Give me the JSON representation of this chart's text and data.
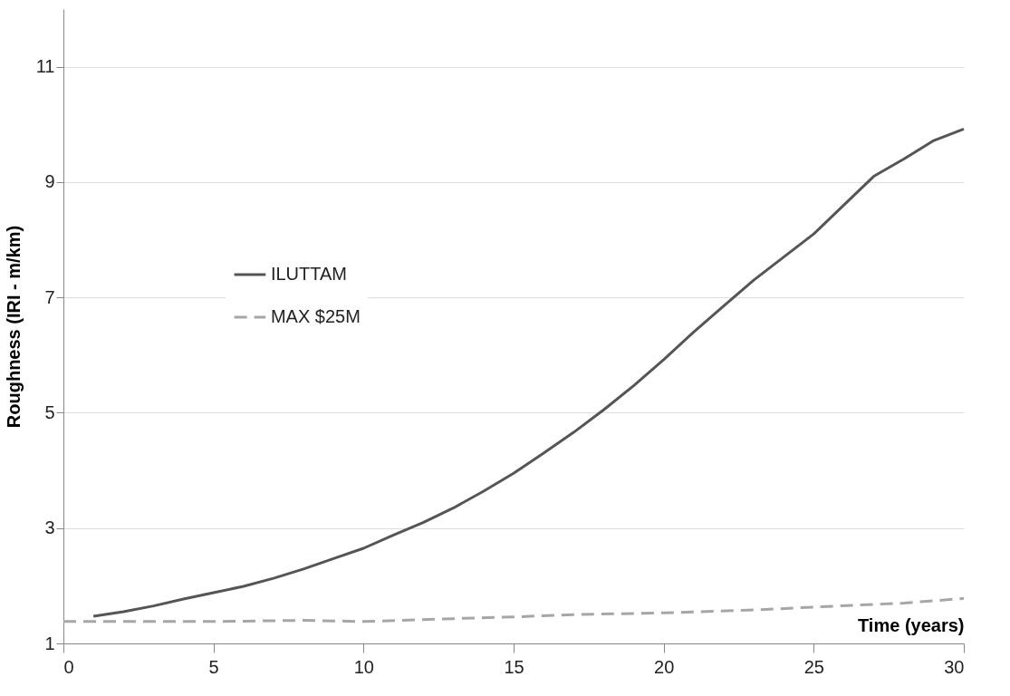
{
  "chart_data": {
    "type": "line",
    "xlabel": "Time (years)",
    "ylabel": "Roughness (IRI - m/km)",
    "xlim": [
      0,
      30
    ],
    "xticks": [
      0,
      5,
      10,
      15,
      20,
      25,
      30
    ],
    "ylim": [
      1,
      12
    ],
    "yticks": [
      1,
      3,
      5,
      7,
      9,
      11
    ],
    "grid": "y",
    "legend": "left",
    "marker": "none",
    "series": [
      {
        "name": "ILUTTAM",
        "color": "#555555",
        "line_style": "solid",
        "x": [
          1,
          2,
          3,
          4,
          5,
          6,
          7,
          8,
          9,
          10,
          11,
          12,
          13,
          14,
          15,
          16,
          17,
          18,
          19,
          20,
          21,
          22,
          23,
          24,
          25,
          26,
          27,
          28,
          29,
          30
        ],
        "values": [
          1.47,
          1.55,
          1.65,
          1.77,
          1.88,
          1.99,
          2.13,
          2.29,
          2.47,
          2.65,
          2.88,
          3.1,
          3.35,
          3.64,
          3.95,
          4.3,
          4.66,
          5.05,
          5.47,
          5.92,
          6.4,
          6.85,
          7.3,
          7.7,
          8.1,
          8.6,
          9.1,
          9.4,
          9.72,
          9.92
        ]
      },
      {
        "name": "MAX $25M",
        "color": "#a6a6a6",
        "line_style": "dashed",
        "x": [
          0,
          5,
          8,
          10,
          13,
          15,
          17,
          20,
          23,
          25,
          28,
          30
        ],
        "values": [
          1.38,
          1.38,
          1.4,
          1.38,
          1.43,
          1.46,
          1.5,
          1.53,
          1.58,
          1.63,
          1.7,
          1.78
        ]
      }
    ]
  }
}
